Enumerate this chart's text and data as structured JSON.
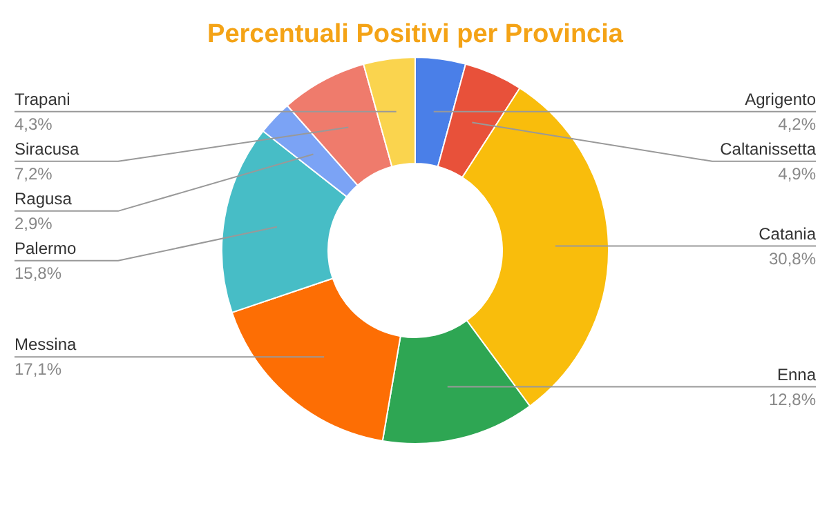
{
  "chart_data": {
    "type": "donut",
    "title": "Percentuali Positivi per Provincia",
    "categories": [
      "Agrigento",
      "Caltanissetta",
      "Catania",
      "Enna",
      "Messina",
      "Palermo",
      "Ragusa",
      "Siracusa",
      "Trapani"
    ],
    "values": [
      4.2,
      4.9,
      30.8,
      12.8,
      17.1,
      15.8,
      2.9,
      7.2,
      4.3
    ],
    "value_labels": [
      "4,2%",
      "4,9%",
      "30,8%",
      "12,8%",
      "17,1%",
      "15,8%",
      "2,9%",
      "7,2%",
      "4,3%"
    ],
    "colors": [
      "#4a7fe8",
      "#e8513a",
      "#f9bd0c",
      "#2ea653",
      "#fd6e04",
      "#47bdc6",
      "#7ba3f5",
      "#ef7b6c",
      "#fad44e"
    ],
    "legend": false
  }
}
